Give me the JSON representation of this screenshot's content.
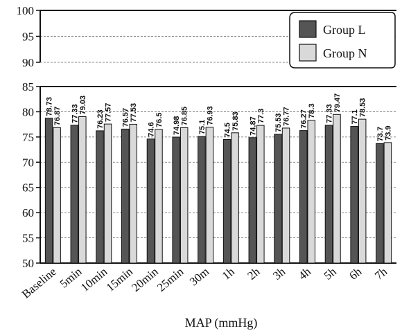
{
  "chart_data": {
    "type": "bar",
    "xlabel": "MAP (mmHg)",
    "ylabel": "",
    "title": "",
    "ylim": [
      50,
      100
    ],
    "axis_break": [
      85,
      90
    ],
    "y_ticks": [
      "50",
      "55",
      "60",
      "65",
      "70",
      "75",
      "80",
      "85",
      "90",
      "95",
      "100"
    ],
    "grid": "dashed horizontal",
    "legend_position": "top-right",
    "categories": [
      "Baseline",
      "5min",
      "10min",
      "15min",
      "20min",
      "25min",
      "30m",
      "1h",
      "2h",
      "3h",
      "4h",
      "5h",
      "6h",
      "7h"
    ],
    "series": [
      {
        "name": "Group L",
        "color": "#555555",
        "values": [
          78.73,
          77.33,
          76.23,
          76.57,
          74.6,
          74.98,
          75.1,
          74.5,
          74.87,
          75.53,
          76.27,
          77.33,
          77.1,
          73.7
        ],
        "labels": [
          "78.73",
          "77.33",
          "76.23",
          "76.57",
          "74.6",
          "74.98",
          "75.1",
          "74.5",
          "74.87",
          "75.53",
          "76.27",
          "77.33",
          "77.1",
          "73.7"
        ]
      },
      {
        "name": "Group N",
        "color": "#d9d9d9",
        "values": [
          76.87,
          79.03,
          77.57,
          77.53,
          76.5,
          76.85,
          76.93,
          75.83,
          77.3,
          76.77,
          78.3,
          79.47,
          78.53,
          73.9
        ],
        "labels": [
          "76.87",
          "79.03",
          "77.57",
          "77.53",
          "76.5",
          "76.85",
          "76.93",
          "75.83",
          "77.3",
          "76.77",
          "78.3",
          "79.47",
          "78.53",
          "73.9"
        ]
      }
    ]
  }
}
